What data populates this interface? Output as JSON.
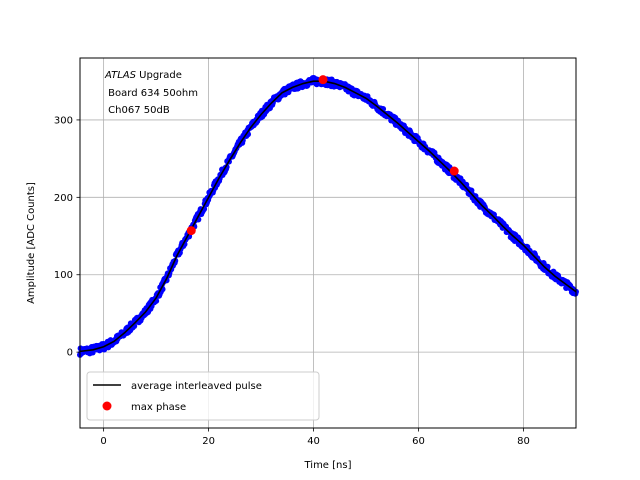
{
  "chart_data": {
    "type": "scatter",
    "xlabel": "Time [ns]",
    "ylabel": "Amplitude [ADC Counts]",
    "xlim": [
      -4.5,
      90
    ],
    "ylim": [
      -98,
      380
    ],
    "x_ticks": [
      0,
      20,
      40,
      60,
      80
    ],
    "y_ticks": [
      0,
      100,
      200,
      300
    ],
    "grid": true,
    "annotation": {
      "atlas": "ATLAS",
      "upgrade": " Upgrade",
      "line2": " Board 634 50ohm",
      "line3": " Ch067 50dB"
    },
    "legend": {
      "placement": "lower-left",
      "entries": [
        "average interleaved pulse",
        "max phase"
      ]
    },
    "colors": {
      "samples": "#0000ff",
      "average": "#000000",
      "max_phase": "#ff0000",
      "grid": "#b0b0b0"
    },
    "series": [
      {
        "name": "average interleaved pulse",
        "x": [
          -4.5,
          -2,
          0,
          2,
          4,
          6,
          8,
          10,
          12,
          14,
          16,
          18,
          20,
          22,
          24,
          26,
          28,
          30,
          32,
          34,
          36,
          38,
          40,
          42,
          44,
          46,
          48,
          50,
          52,
          54,
          56,
          58,
          60,
          62,
          64,
          66,
          68,
          70,
          72,
          74,
          76,
          78,
          80,
          82,
          84,
          86,
          88,
          90
        ],
        "y": [
          1,
          3,
          7,
          14,
          25,
          38,
          52,
          70,
          95,
          125,
          150,
          175,
          200,
          225,
          248,
          270,
          290,
          307,
          322,
          335,
          342,
          347,
          350,
          350,
          347,
          342,
          335,
          328,
          318,
          307,
          296,
          284,
          272,
          260,
          247,
          234,
          220,
          205,
          190,
          177,
          163,
          150,
          138,
          124,
          110,
          98,
          88,
          78
        ]
      },
      {
        "name": "max phase",
        "x": [
          16.7,
          41.8,
          66.8
        ],
        "y": [
          157,
          352,
          234
        ]
      }
    ]
  }
}
